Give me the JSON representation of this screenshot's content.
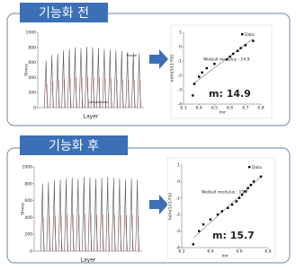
{
  "panels": [
    {
      "label": "기능화 전",
      "result": "m: 14.9"
    },
    {
      "label": "기능화 후",
      "result": "m: 15.7"
    }
  ],
  "chart_data": [
    {
      "type": "spike",
      "x_label": "Layer",
      "y_label": "Stress",
      "ylim": [
        0,
        1000
      ],
      "yticks": [
        0,
        200,
        400,
        600,
        800,
        1000
      ],
      "values": [
        620,
        700,
        720,
        760,
        780,
        800,
        790,
        810,
        800,
        790,
        780,
        770,
        760,
        750,
        740,
        730,
        720
      ],
      "color": "#555555",
      "annotations": [
        "Tensile",
        "Compression"
      ]
    },
    {
      "type": "scatter",
      "x_label": "lnσ",
      "y_label": "ln(ln(1/(1-F)))",
      "xlim": [
        6.3,
        6.8
      ],
      "xticks": [
        6.3,
        6.4,
        6.5,
        6.6,
        6.7,
        6.8
      ],
      "ylim": [
        -4,
        1
      ],
      "yticks": [
        -4,
        -3,
        -2,
        -1,
        0,
        1
      ],
      "x": [
        6.36,
        6.37,
        6.4,
        6.42,
        6.45,
        6.5,
        6.58,
        6.6,
        6.62,
        6.65,
        6.67,
        6.7,
        6.75
      ],
      "values": [
        -3.4,
        -2.6,
        -2.1,
        -1.8,
        -1.5,
        -1.2,
        -0.9,
        -0.7,
        -0.5,
        -0.3,
        -0.1,
        0.1,
        0.4
      ],
      "legend": "Data",
      "annotation": "Weibull modulus : 14.9",
      "color": "#000000"
    },
    {
      "type": "spike",
      "x_label": "Layer",
      "y_label": "Stress",
      "ylim": [
        0,
        1000
      ],
      "yticks": [
        0,
        200,
        400,
        600,
        800,
        1000
      ],
      "values": [
        800,
        820,
        840,
        850,
        860,
        870,
        860,
        880,
        870,
        860,
        870,
        880,
        870,
        860,
        850,
        860,
        850
      ],
      "color": "#555555"
    },
    {
      "type": "scatter",
      "x_label": "lnσ",
      "y_label": "ln(ln(1/(1-F)))",
      "xlim": [
        6.2,
        6.8
      ],
      "xticks": [
        6.2,
        6.4,
        6.6,
        6.8
      ],
      "ylim": [
        -4,
        1
      ],
      "yticks": [
        -4,
        -3,
        -2,
        -1,
        0,
        1
      ],
      "x": [
        6.28,
        6.32,
        6.35,
        6.4,
        6.45,
        6.48,
        6.52,
        6.55,
        6.58,
        6.6,
        6.62,
        6.64,
        6.66,
        6.68,
        6.7,
        6.75
      ],
      "values": [
        -3.8,
        -3.0,
        -2.6,
        -2.3,
        -2.0,
        -1.8,
        -1.6,
        -1.4,
        -1.2,
        -1.0,
        -0.8,
        -0.6,
        -0.4,
        -0.2,
        0.0,
        0.3
      ],
      "legend": "Data",
      "annotation": "Weibull modulus : 15.7",
      "color": "#000000"
    }
  ]
}
